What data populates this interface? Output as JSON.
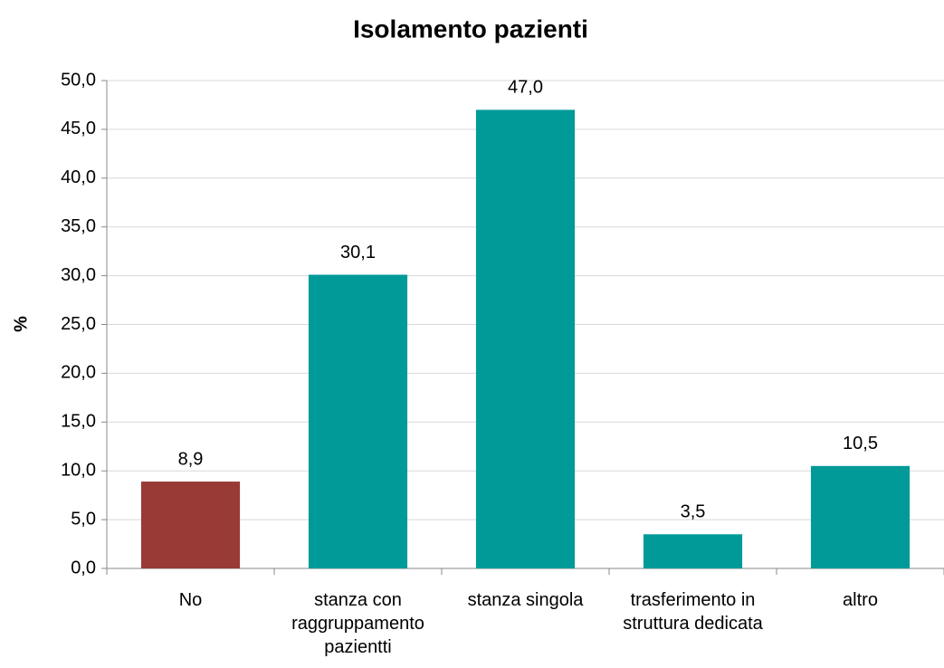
{
  "chart_data": {
    "type": "bar",
    "title": "Isolamento pazienti",
    "y_label": "%",
    "categories": [
      "No",
      "stanza con raggruppamento pazientti",
      "stanza singola",
      "trasferimento in struttura dedicata",
      "altro"
    ],
    "values": [
      8.9,
      30.1,
      47.0,
      3.5,
      10.5
    ],
    "value_labels": [
      "8,9",
      "30,1",
      "47,0",
      "3,5",
      "10,5"
    ],
    "colors": [
      "#993a36",
      "#009a98",
      "#009a98",
      "#009a98",
      "#009a98"
    ],
    "ylim": [
      0,
      50
    ],
    "yticks": [
      {
        "value": 0,
        "label": "0,0"
      },
      {
        "value": 5,
        "label": "5,0"
      },
      {
        "value": 10,
        "label": "10,0"
      },
      {
        "value": 15,
        "label": "15,0"
      },
      {
        "value": 20,
        "label": "20,0"
      },
      {
        "value": 25,
        "label": "25,0"
      },
      {
        "value": 30,
        "label": "30,0"
      },
      {
        "value": 35,
        "label": "35,0"
      },
      {
        "value": 40,
        "label": "40,0"
      },
      {
        "value": 45,
        "label": "45,0"
      },
      {
        "value": 50,
        "label": "50,0"
      }
    ],
    "grid": true
  }
}
